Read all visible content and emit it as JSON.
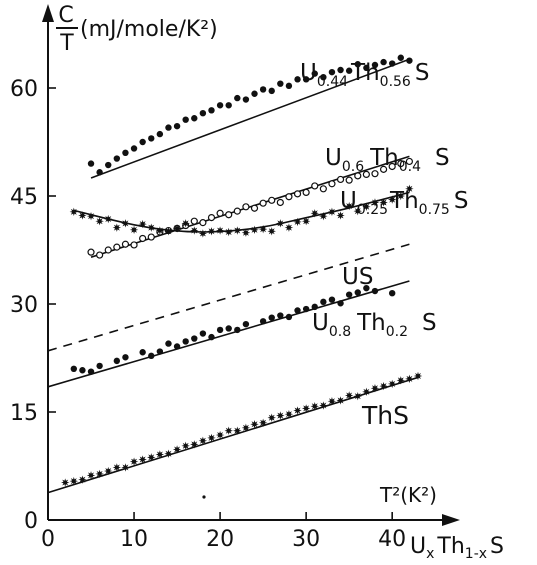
{
  "chart_data": {
    "type": "scatter",
    "title": "",
    "xlabel": "T²(K²)",
    "ylabel_c": "C",
    "ylabel_t": "T",
    "ylabel_units": "(mJ/mole/K²)",
    "corner_label": "UₓTh₁₋ₓS",
    "xlim": [
      0,
      45
    ],
    "ylim": [
      0,
      70
    ],
    "x_ticks": [
      "0",
      "10",
      "20",
      "30",
      "40"
    ],
    "x_tick_values": [
      0,
      10,
      20,
      30,
      40
    ],
    "y_ticks": [
      "0",
      "15",
      "30",
      "45",
      "60"
    ],
    "y_tick_values": [
      0,
      15,
      30,
      45,
      60
    ],
    "grid": false,
    "series": [
      {
        "name": "U0.44Th0.56S",
        "marker": "filled",
        "fit": [
          [
            5,
            47.5
          ],
          [
            42,
            64
          ]
        ],
        "x": [
          5,
          6,
          7,
          8,
          9,
          10,
          11,
          12,
          13,
          14,
          15,
          16,
          17,
          18,
          19,
          20,
          21,
          22,
          23,
          24,
          25,
          26,
          27,
          28,
          29,
          30,
          31,
          32,
          33,
          34,
          35,
          36,
          37,
          38,
          39,
          40,
          41,
          42
        ],
        "values": [
          49.5,
          48.3,
          49.3,
          50.2,
          51,
          51.6,
          52.5,
          53,
          53.6,
          54.5,
          54.7,
          55.6,
          55.8,
          56.5,
          56.9,
          57.6,
          57.6,
          58.6,
          58.4,
          59.2,
          59.8,
          59.6,
          60.6,
          60.3,
          61.2,
          61.2,
          62,
          61.5,
          62.2,
          62.5,
          62.4,
          63.3,
          62.8,
          63.2,
          63.6,
          63.4,
          64.2,
          63.8
        ]
      },
      {
        "name": "U0.6Th0.4S",
        "marker": "open",
        "fit": [
          [
            5,
            36.5
          ],
          [
            42,
            50.5
          ]
        ],
        "x": [
          5,
          6,
          7,
          8,
          9,
          10,
          11,
          12,
          13,
          14,
          15,
          16,
          17,
          18,
          19,
          20,
          21,
          22,
          23,
          24,
          25,
          26,
          27,
          28,
          29,
          30,
          31,
          32,
          33,
          34,
          35,
          36,
          37,
          38,
          39,
          40,
          41,
          42
        ],
        "values": [
          37.2,
          36.8,
          37.5,
          37.9,
          38.3,
          38.2,
          39.1,
          39.3,
          40,
          40.2,
          40.5,
          40.9,
          41.5,
          41.3,
          42,
          42.6,
          42.4,
          42.9,
          43.5,
          43.3,
          44,
          44.4,
          44.1,
          44.9,
          45.3,
          45.5,
          46.4,
          46,
          46.7,
          47.3,
          47.2,
          47.8,
          48,
          48.1,
          48.7,
          49.1,
          49.5,
          49.8
        ]
      },
      {
        "name": "U0.25Th0.75S",
        "marker": "star",
        "fit_curve": [
          [
            3,
            43
          ],
          [
            8,
            41.5
          ],
          [
            12,
            40.5
          ],
          [
            16,
            40
          ],
          [
            20,
            40
          ],
          [
            25,
            40.6
          ],
          [
            30,
            42
          ],
          [
            35,
            43.3
          ],
          [
            42,
            45.5
          ]
        ],
        "x": [
          3,
          4,
          5,
          6,
          7,
          8,
          9,
          10,
          11,
          12,
          13,
          14,
          15,
          16,
          17,
          18,
          19,
          20,
          21,
          22,
          23,
          24,
          25,
          26,
          27,
          28,
          29,
          30,
          31,
          32,
          33,
          34,
          35,
          36,
          37,
          38,
          39,
          40,
          41,
          42
        ],
        "values": [
          42.8,
          42.3,
          42.2,
          41.5,
          41.8,
          40.6,
          41.2,
          40.3,
          41.1,
          40.6,
          40.2,
          40.1,
          40.5,
          41.2,
          40.2,
          39.8,
          40.1,
          40.2,
          40,
          40.2,
          39.9,
          40.3,
          40.4,
          40.1,
          41.2,
          40.6,
          41.4,
          41.5,
          42.6,
          42.2,
          42.8,
          42.3,
          43.6,
          42.9,
          43.5,
          44.1,
          44.1,
          44.5,
          45,
          46
        ]
      },
      {
        "name": "US",
        "marker": "none",
        "line_style": "dashed",
        "fit": [
          [
            0,
            23.5
          ],
          [
            42,
            38.3
          ]
        ],
        "x": [],
        "values": []
      },
      {
        "name": "U0.8Th0.2S",
        "marker": "filled",
        "fit": [
          [
            0,
            18.5
          ],
          [
            42,
            33.2
          ]
        ],
        "x": [
          3,
          4,
          5,
          6,
          8,
          9,
          11,
          12,
          13,
          14,
          15,
          16,
          17,
          18,
          19,
          20,
          21,
          22,
          23,
          25,
          26,
          27,
          28,
          29,
          30,
          31,
          32,
          33,
          34,
          35,
          36,
          37,
          38,
          40
        ],
        "values": [
          21,
          20.8,
          20.6,
          21.4,
          22.1,
          22.6,
          23.3,
          22.8,
          23.4,
          24.5,
          24.1,
          24.8,
          25.2,
          25.9,
          25.4,
          26.4,
          26.6,
          26.4,
          27.2,
          27.6,
          28.1,
          28.4,
          28.2,
          29.1,
          29.3,
          29.6,
          30.3,
          30.6,
          30.1,
          31.3,
          31.6,
          32.2,
          31.8,
          31.5
        ]
      },
      {
        "name": "ThS",
        "marker": "star",
        "fit": [
          [
            0,
            3.8
          ],
          [
            43,
            19.8
          ]
        ],
        "x": [
          2,
          3,
          4,
          5,
          6,
          7,
          8,
          9,
          10,
          11,
          12,
          13,
          14,
          15,
          16,
          17,
          18,
          19,
          20,
          21,
          22,
          23,
          24,
          25,
          26,
          27,
          28,
          29,
          30,
          31,
          32,
          33,
          34,
          35,
          36,
          37,
          38,
          39,
          40,
          41,
          42,
          43
        ],
        "values": [
          5.2,
          5.4,
          5.6,
          6.2,
          6.4,
          6.8,
          7.3,
          7.3,
          8.1,
          8.4,
          8.7,
          9.1,
          9.2,
          9.8,
          10.3,
          10.5,
          11,
          11.4,
          11.8,
          12.4,
          12.4,
          12.8,
          13.3,
          13.5,
          14.2,
          14.5,
          14.7,
          15.2,
          15.5,
          15.8,
          15.9,
          16.5,
          16.6,
          17.3,
          17.2,
          17.8,
          18.3,
          18.6,
          18.9,
          19.4,
          19.6,
          20
        ]
      }
    ]
  },
  "annotations": {
    "label_u044": {
      "u": "U",
      "sub1": "0.44",
      "th": "Th",
      "sub2": "0.56",
      "s": "S"
    },
    "label_u06": {
      "u": "U",
      "sub1": "0.6",
      "th": "Th",
      "sub2": "0.4",
      "s": "S"
    },
    "label_u025": {
      "u": "U",
      "sub1": "0.25",
      "th": "Th",
      "sub2": "0.75",
      "s": "S"
    },
    "label_us": {
      "text": "US"
    },
    "label_u08": {
      "u": "U",
      "sub1": "0.8",
      "th": "Th",
      "sub2": "0.2",
      "s": "S"
    },
    "label_ths": {
      "text": "ThS"
    },
    "corner": {
      "u": "U",
      "sub1": "x",
      "th": "Th",
      "sub2": "1-x",
      "s": "S"
    }
  }
}
